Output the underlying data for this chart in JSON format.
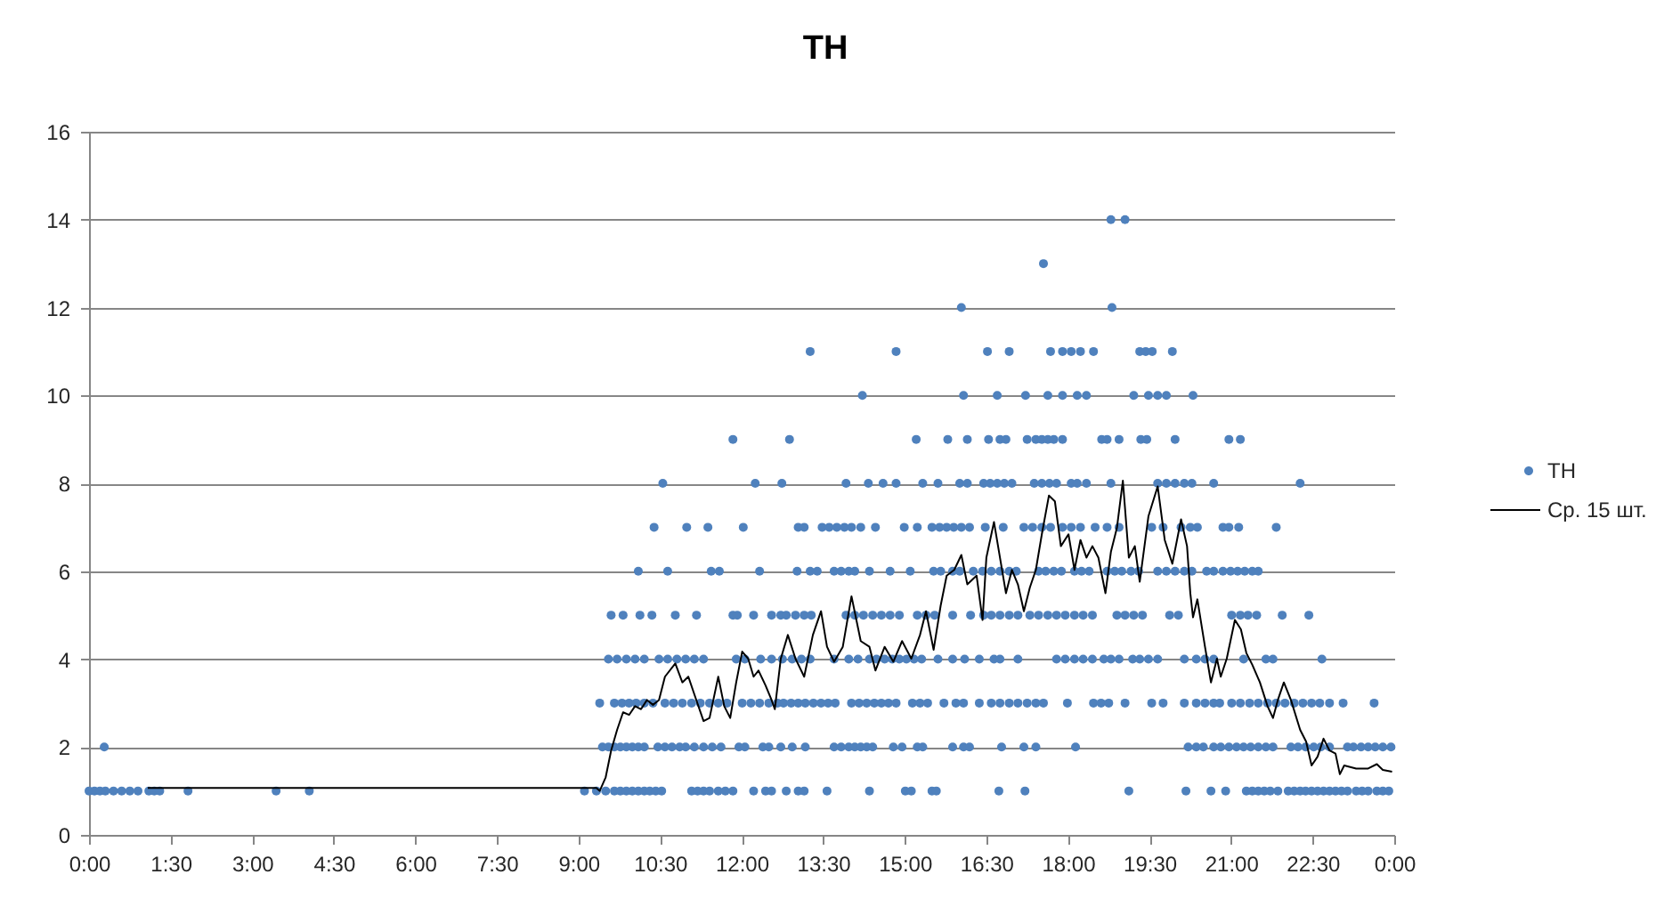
{
  "chart_data": {
    "type": "scatter",
    "title": "ТН",
    "xlim": [
      0,
      24
    ],
    "xticks": [
      {
        "value": 0,
        "label": "0:00"
      },
      {
        "value": 1.5,
        "label": "1:30"
      },
      {
        "value": 3,
        "label": "3:00"
      },
      {
        "value": 4.5,
        "label": "4:30"
      },
      {
        "value": 6,
        "label": "6:00"
      },
      {
        "value": 7.5,
        "label": "7:30"
      },
      {
        "value": 9,
        "label": "9:00"
      },
      {
        "value": 10.5,
        "label": "10:30"
      },
      {
        "value": 12,
        "label": "12:00"
      },
      {
        "value": 13.5,
        "label": "13:30"
      },
      {
        "value": 15,
        "label": "15:00"
      },
      {
        "value": 16.5,
        "label": "16:30"
      },
      {
        "value": 18,
        "label": "18:00"
      },
      {
        "value": 19.5,
        "label": "19:30"
      },
      {
        "value": 21,
        "label": "21:00"
      },
      {
        "value": 22.5,
        "label": "22:30"
      },
      {
        "value": 24,
        "label": "0:00"
      }
    ],
    "ylim": [
      0,
      16
    ],
    "yticks": [
      0,
      2,
      4,
      6,
      8,
      10,
      12,
      14,
      16
    ],
    "grid": "y",
    "legend": "right",
    "series": [
      {
        "name": "ТН",
        "marker": "circle",
        "color": "#4f81bd",
        "x": [
          0.0,
          0.1,
          0.2,
          0.3,
          0.45,
          0.6,
          0.75,
          0.9,
          1.1,
          1.2,
          1.3,
          1.82,
          3.44,
          4.05,
          9.11,
          9.33,
          9.5,
          9.66,
          9.77,
          9.88,
          9.99,
          10.1,
          10.21,
          10.31,
          10.42,
          10.53,
          11.08,
          11.19,
          11.3,
          11.41,
          11.57,
          11.7,
          11.84,
          12.22,
          12.44,
          12.55,
          12.82,
          13.04,
          13.15,
          13.57,
          14.35,
          15.01,
          15.12,
          15.5,
          15.58,
          16.73,
          17.21,
          19.12,
          20.17,
          20.63,
          20.9,
          21.28,
          21.39,
          21.5,
          21.61,
          21.72,
          21.86,
          22.05,
          22.16,
          22.27,
          22.37,
          22.48,
          22.59,
          22.7,
          22.81,
          22.92,
          23.03,
          23.14,
          23.3,
          23.41,
          23.52,
          23.68,
          23.79,
          23.9,
          0.28,
          9.44,
          9.55,
          9.66,
          9.77,
          9.88,
          9.99,
          10.1,
          10.21,
          10.46,
          10.59,
          10.72,
          10.86,
          10.97,
          11.13,
          11.3,
          11.46,
          11.62,
          11.95,
          12.06,
          12.39,
          12.5,
          12.72,
          12.93,
          13.17,
          13.7,
          13.83,
          13.97,
          14.08,
          14.19,
          14.3,
          14.41,
          14.79,
          14.95,
          15.23,
          15.33,
          15.88,
          16.08,
          16.19,
          16.78,
          17.19,
          17.41,
          18.14,
          20.21,
          20.36,
          20.49,
          20.68,
          20.81,
          20.96,
          21.1,
          21.23,
          21.36,
          21.5,
          21.64,
          21.77,
          22.1,
          22.23,
          22.37,
          22.52,
          22.65,
          22.81,
          23.14,
          23.25,
          23.39,
          23.52,
          23.65,
          23.79,
          23.94,
          9.39,
          9.66,
          9.8,
          9.93,
          10.06,
          10.21,
          10.37,
          10.59,
          10.75,
          10.91,
          11.08,
          11.24,
          11.41,
          11.57,
          11.73,
          12.01,
          12.17,
          12.33,
          12.5,
          12.66,
          12.77,
          12.91,
          13.04,
          13.17,
          13.32,
          13.46,
          13.59,
          13.72,
          14.02,
          14.16,
          14.3,
          14.44,
          14.57,
          14.7,
          14.84,
          15.14,
          15.28,
          15.42,
          15.72,
          15.94,
          16.08,
          16.37,
          16.59,
          16.75,
          16.92,
          17.08,
          17.25,
          17.41,
          17.55,
          17.99,
          18.47,
          18.61,
          18.75,
          19.05,
          19.54,
          19.75,
          20.14,
          20.36,
          20.52,
          20.68,
          20.79,
          21.01,
          21.17,
          21.34,
          21.5,
          21.67,
          21.83,
          21.99,
          22.16,
          22.32,
          22.48,
          22.63,
          22.81,
          23.06,
          23.63,
          9.55,
          9.71,
          9.88,
          10.04,
          10.21,
          10.48,
          10.64,
          10.81,
          10.97,
          11.13,
          11.3,
          11.9,
          12.06,
          12.35,
          12.55,
          12.75,
          12.93,
          13.1,
          13.26,
          13.7,
          13.97,
          14.14,
          14.35,
          14.48,
          14.63,
          14.77,
          14.9,
          15.03,
          15.17,
          15.31,
          15.61,
          15.88,
          16.1,
          16.37,
          16.64,
          16.75,
          17.08,
          17.79,
          17.95,
          18.12,
          18.28,
          18.45,
          18.66,
          18.79,
          18.94,
          19.19,
          19.32,
          19.48,
          19.65,
          20.14,
          20.36,
          20.52,
          20.68,
          21.23,
          21.64,
          21.77,
          22.67,
          9.6,
          9.82,
          10.13,
          10.35,
          10.78,
          11.17,
          11.84,
          11.92,
          12.22,
          12.55,
          12.72,
          12.82,
          12.99,
          13.15,
          13.28,
          13.92,
          14.08,
          14.24,
          14.41,
          14.57,
          14.73,
          14.9,
          15.23,
          15.39,
          15.55,
          15.88,
          16.21,
          16.45,
          16.59,
          16.75,
          16.92,
          17.08,
          17.3,
          17.46,
          17.63,
          17.79,
          17.95,
          18.12,
          18.28,
          18.45,
          18.9,
          19.05,
          19.21,
          19.37,
          19.87,
          20.03,
          21.01,
          21.17,
          21.31,
          21.47,
          21.94,
          22.43,
          10.1,
          10.64,
          11.44,
          11.59,
          12.33,
          13.02,
          13.26,
          13.39,
          13.7,
          13.83,
          13.97,
          14.08,
          14.35,
          14.73,
          15.1,
          15.53,
          15.66,
          15.88,
          16.01,
          16.26,
          16.43,
          16.59,
          16.75,
          16.92,
          17.05,
          17.46,
          17.59,
          17.74,
          17.88,
          18.12,
          18.25,
          18.39,
          18.72,
          18.86,
          18.99,
          19.16,
          19.3,
          19.65,
          19.81,
          19.97,
          20.14,
          20.28,
          20.55,
          20.68,
          20.85,
          20.99,
          21.12,
          21.25,
          21.39,
          21.5,
          10.39,
          10.99,
          11.38,
          12.03,
          13.04,
          13.15,
          13.48,
          13.61,
          13.75,
          13.89,
          14.02,
          14.19,
          14.46,
          14.99,
          15.23,
          15.5,
          15.64,
          15.77,
          15.9,
          16.04,
          16.19,
          16.48,
          16.81,
          17.19,
          17.35,
          17.52,
          17.68,
          17.9,
          18.06,
          18.23,
          18.5,
          18.72,
          18.94,
          19.54,
          19.75,
          20.08,
          20.25,
          20.38,
          20.85,
          20.96,
          21.14,
          21.83,
          10.55,
          12.25,
          12.74,
          13.92,
          14.33,
          14.6,
          14.84,
          15.33,
          15.61,
          16.01,
          16.15,
          16.45,
          16.57,
          16.7,
          16.83,
          16.97,
          17.38,
          17.52,
          17.66,
          17.79,
          18.06,
          18.17,
          18.34,
          18.79,
          19.65,
          19.81,
          19.97,
          20.14,
          20.28,
          20.68,
          22.27,
          11.84,
          12.88,
          15.21,
          15.79,
          16.15,
          16.54,
          16.75,
          16.86,
          17.25,
          17.41,
          17.52,
          17.63,
          17.74,
          17.9,
          18.62,
          18.72,
          18.94,
          19.34,
          19.45,
          19.97,
          20.96,
          21.17,
          14.22,
          16.08,
          16.7,
          17.22,
          17.63,
          17.9,
          18.17,
          18.34,
          19.21,
          19.48,
          19.65,
          19.81,
          20.3,
          13.26,
          14.84,
          16.52,
          16.92,
          17.68,
          17.9,
          18.06,
          18.23,
          18.47,
          19.32,
          19.43,
          19.55,
          19.92,
          16.04,
          18.81,
          17.55,
          18.79,
          19.05
        ],
        "values": [
          1,
          1,
          1,
          1,
          1,
          1,
          1,
          1,
          1,
          1,
          1,
          1,
          1,
          1,
          1,
          1,
          1,
          1,
          1,
          1,
          1,
          1,
          1,
          1,
          1,
          1,
          1,
          1,
          1,
          1,
          1,
          1,
          1,
          1,
          1,
          1,
          1,
          1,
          1,
          1,
          1,
          1,
          1,
          1,
          1,
          1,
          1,
          1,
          1,
          1,
          1,
          1,
          1,
          1,
          1,
          1,
          1,
          1,
          1,
          1,
          1,
          1,
          1,
          1,
          1,
          1,
          1,
          1,
          1,
          1,
          1,
          1,
          1,
          1,
          2,
          2,
          2,
          2,
          2,
          2,
          2,
          2,
          2,
          2,
          2,
          2,
          2,
          2,
          2,
          2,
          2,
          2,
          2,
          2,
          2,
          2,
          2,
          2,
          2,
          2,
          2,
          2,
          2,
          2,
          2,
          2,
          2,
          2,
          2,
          2,
          2,
          2,
          2,
          2,
          2,
          2,
          2,
          2,
          2,
          2,
          2,
          2,
          2,
          2,
          2,
          2,
          2,
          2,
          2,
          2,
          2,
          2,
          2,
          2,
          2,
          2,
          2,
          2,
          2,
          2,
          2,
          2,
          3,
          3,
          3,
          3,
          3,
          3,
          3,
          3,
          3,
          3,
          3,
          3,
          3,
          3,
          3,
          3,
          3,
          3,
          3,
          3,
          3,
          3,
          3,
          3,
          3,
          3,
          3,
          3,
          3,
          3,
          3,
          3,
          3,
          3,
          3,
          3,
          3,
          3,
          3,
          3,
          3,
          3,
          3,
          3,
          3,
          3,
          3,
          3,
          3,
          3,
          3,
          3,
          3,
          3,
          3,
          3,
          3,
          3,
          3,
          3,
          3,
          3,
          3,
          3,
          3,
          3,
          3,
          3,
          3,
          3,
          3,
          3,
          3,
          3,
          3,
          4,
          4,
          4,
          4,
          4,
          4,
          4,
          4,
          4,
          4,
          4,
          4,
          4,
          4,
          4,
          4,
          4,
          4,
          4,
          4,
          4,
          4,
          4,
          4,
          4,
          4,
          4,
          4,
          4,
          4,
          4,
          4,
          4,
          4,
          4,
          4,
          4,
          4,
          4,
          4,
          4,
          4,
          4,
          4,
          4,
          4,
          4,
          4,
          4,
          4,
          4,
          4,
          4,
          4,
          4,
          4,
          4,
          5,
          5,
          5,
          5,
          5,
          5,
          5,
          5,
          5,
          5,
          5,
          5,
          5,
          5,
          5,
          5,
          5,
          5,
          5,
          5,
          5,
          5,
          5,
          5,
          5,
          5,
          5,
          5,
          5,
          5,
          5,
          5,
          5,
          5,
          5,
          5,
          5,
          5,
          5,
          5,
          5,
          5,
          5,
          5,
          5,
          5,
          5,
          5,
          5,
          5,
          5,
          5,
          6,
          6,
          6,
          6,
          6,
          6,
          6,
          6,
          6,
          6,
          6,
          6,
          6,
          6,
          6,
          6,
          6,
          6,
          6,
          6,
          6,
          6,
          6,
          6,
          6,
          6,
          6,
          6,
          6,
          6,
          6,
          6,
          6,
          6,
          6,
          6,
          6,
          6,
          6,
          6,
          6,
          6,
          6,
          6,
          6,
          6,
          6,
          6,
          6,
          6,
          7,
          7,
          7,
          7,
          7,
          7,
          7,
          7,
          7,
          7,
          7,
          7,
          7,
          7,
          7,
          7,
          7,
          7,
          7,
          7,
          7,
          7,
          7,
          7,
          7,
          7,
          7,
          7,
          7,
          7,
          7,
          7,
          7,
          7,
          7,
          7,
          7,
          7,
          7,
          7,
          7,
          7,
          8,
          8,
          8,
          8,
          8,
          8,
          8,
          8,
          8,
          8,
          8,
          8,
          8,
          8,
          8,
          8,
          8,
          8,
          8,
          8,
          8,
          8,
          8,
          8,
          8,
          8,
          8,
          8,
          8,
          8,
          8,
          9,
          9,
          9,
          9,
          9,
          9,
          9,
          9,
          9,
          9,
          9,
          9,
          9,
          9,
          9,
          9,
          9,
          9,
          9,
          9,
          9,
          9,
          10,
          10,
          10,
          10,
          10,
          10,
          10,
          10,
          10,
          10,
          10,
          10,
          10,
          11,
          11,
          11,
          11,
          11,
          11,
          11,
          11,
          11,
          11,
          11,
          11,
          11,
          12,
          12,
          13,
          14,
          14
        ]
      },
      {
        "name": "Ср. 15 шт.",
        "type": "line",
        "marker": "none",
        "line_style": "solid",
        "color": "#000000",
        "x": [
          1.08,
          9.33,
          9.39,
          9.5,
          9.6,
          9.71,
          9.82,
          9.93,
          10.04,
          10.15,
          10.26,
          10.37,
          10.48,
          10.59,
          10.78,
          10.91,
          11.02,
          11.13,
          11.3,
          11.41,
          11.57,
          11.68,
          11.79,
          11.9,
          12.01,
          12.12,
          12.22,
          12.31,
          12.44,
          12.55,
          12.61,
          12.72,
          12.85,
          12.99,
          13.15,
          13.31,
          13.46,
          13.57,
          13.7,
          13.86,
          14.02,
          14.19,
          14.35,
          14.46,
          14.63,
          14.79,
          14.95,
          15.12,
          15.28,
          15.39,
          15.53,
          15.66,
          15.77,
          15.91,
          16.04,
          16.15,
          16.32,
          16.43,
          16.5,
          16.64,
          16.75,
          16.86,
          16.97,
          17.08,
          17.19,
          17.3,
          17.41,
          17.52,
          17.65,
          17.76,
          17.87,
          18.01,
          18.12,
          18.23,
          18.34,
          18.45,
          18.56,
          18.69,
          18.79,
          18.9,
          19.01,
          19.12,
          19.23,
          19.32,
          19.48,
          19.65,
          19.78,
          19.92,
          20.08,
          20.19,
          20.25,
          20.3,
          20.38,
          20.52,
          20.63,
          20.74,
          20.81,
          20.92,
          21.07,
          21.18,
          21.28,
          21.39,
          21.53,
          21.67,
          21.77,
          21.86,
          21.97,
          22.1,
          22.27,
          22.38,
          22.48,
          22.59,
          22.7,
          22.81,
          22.92,
          23.0,
          23.08,
          23.3,
          23.52,
          23.68,
          23.79,
          23.96
        ],
        "values": [
          1.07,
          1.07,
          1.0,
          1.31,
          1.92,
          2.39,
          2.79,
          2.73,
          2.93,
          2.86,
          3.07,
          2.96,
          3.07,
          3.6,
          3.9,
          3.47,
          3.6,
          3.2,
          2.59,
          2.66,
          3.6,
          2.93,
          2.66,
          3.47,
          4.17,
          4.01,
          3.6,
          3.74,
          3.4,
          3.07,
          2.86,
          4.01,
          4.55,
          4.01,
          3.6,
          4.55,
          5.09,
          4.28,
          3.94,
          4.28,
          5.43,
          4.41,
          4.28,
          3.74,
          4.28,
          3.94,
          4.41,
          4.01,
          4.55,
          5.09,
          4.21,
          5.22,
          5.9,
          6.03,
          6.37,
          5.7,
          5.9,
          4.89,
          6.31,
          7.12,
          6.31,
          5.5,
          6.03,
          5.7,
          5.09,
          5.63,
          6.03,
          6.84,
          7.72,
          7.59,
          6.57,
          6.84,
          6.03,
          6.71,
          6.31,
          6.57,
          6.31,
          5.5,
          6.44,
          6.98,
          8.06,
          6.31,
          6.57,
          5.76,
          7.25,
          7.93,
          6.71,
          6.17,
          7.18,
          6.57,
          5.5,
          4.95,
          5.36,
          4.28,
          3.47,
          4.01,
          3.6,
          4.01,
          4.89,
          4.68,
          4.14,
          3.87,
          3.47,
          2.93,
          2.66,
          3.07,
          3.47,
          3.07,
          2.39,
          2.12,
          1.58,
          1.78,
          2.19,
          1.92,
          1.85,
          1.38,
          1.58,
          1.51,
          1.51,
          1.61,
          1.48,
          1.44
        ]
      }
    ]
  }
}
